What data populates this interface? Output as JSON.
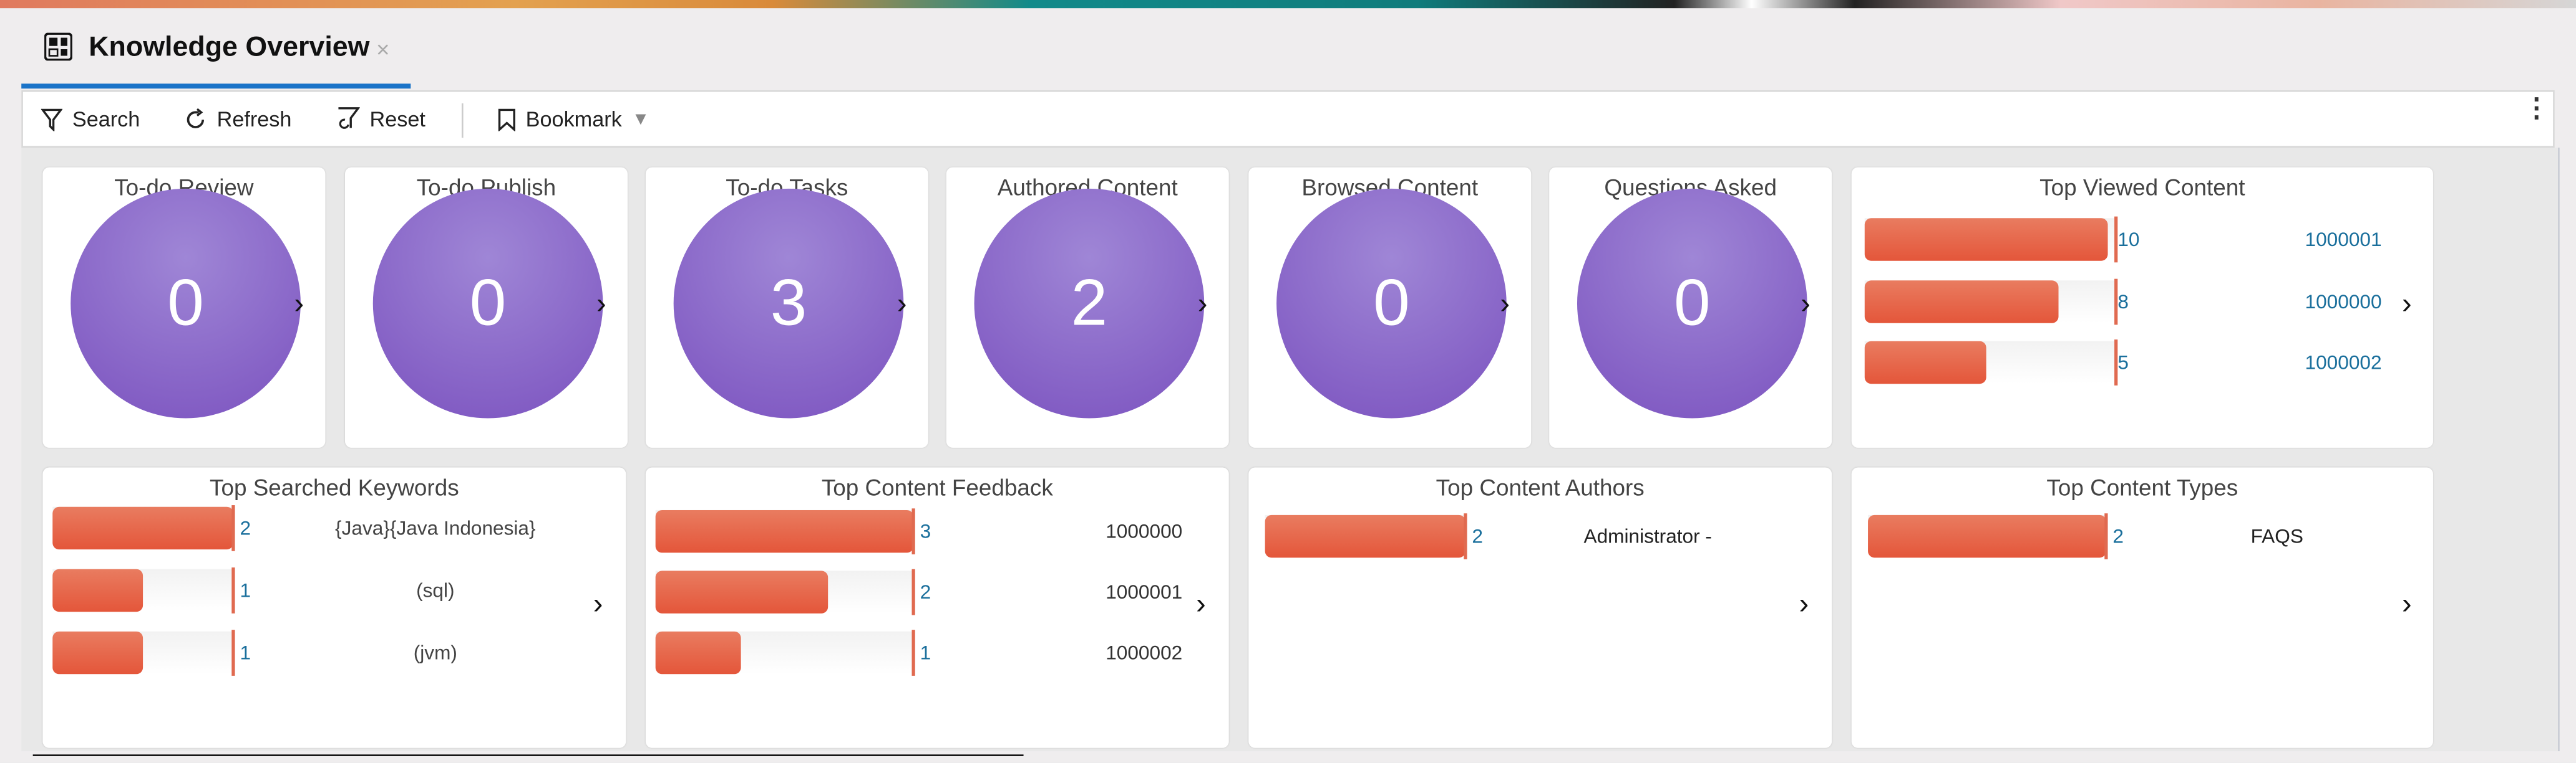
{
  "tab": {
    "title": "Knowledge Overview",
    "close": "×",
    "icon": "dashboard-icon"
  },
  "toolbar": {
    "search": "Search",
    "refresh": "Refresh",
    "reset": "Reset",
    "bookmark": "Bookmark",
    "more": "⋮"
  },
  "colors": {
    "accent": "#1a73c8",
    "circle": "#8a66c8",
    "bar": "#e4563a",
    "value_text": "#1a6f9c"
  },
  "counters": [
    {
      "title": "To-do Review",
      "value": "0"
    },
    {
      "title": "To-do Publish",
      "value": "0"
    },
    {
      "title": "To-do Tasks",
      "value": "3"
    },
    {
      "title": "Authored Content",
      "value": "2"
    },
    {
      "title": "Browsed Content",
      "value": "0"
    },
    {
      "title": "Questions Asked",
      "value": "0"
    }
  ],
  "charts": [
    {
      "id": "top-viewed",
      "title": "Top Viewed Content",
      "label_color": "#1a6f9c",
      "items": [
        {
          "value": 10,
          "label": "1000001"
        },
        {
          "value": 8,
          "label": "1000000"
        },
        {
          "value": 5,
          "label": "1000002"
        }
      ]
    },
    {
      "id": "top-searched",
      "title": "Top Searched Keywords",
      "label_color": "#444444",
      "items": [
        {
          "value": 2,
          "label": "{Java}{Java Indonesia}"
        },
        {
          "value": 1,
          "label": "(sql)"
        },
        {
          "value": 1,
          "label": "(jvm)"
        }
      ]
    },
    {
      "id": "top-feedback",
      "title": "Top Content Feedback",
      "label_color": "#333333",
      "items": [
        {
          "value": 3,
          "label": "1000000"
        },
        {
          "value": 2,
          "label": "1000001"
        },
        {
          "value": 1,
          "label": "1000002"
        }
      ]
    },
    {
      "id": "top-authors",
      "title": "Top Content Authors",
      "label_color": "#222222",
      "items": [
        {
          "value": 2,
          "label": "Administrator -"
        }
      ]
    },
    {
      "id": "top-types",
      "title": "Top Content Types",
      "label_color": "#222222",
      "items": [
        {
          "value": 2,
          "label": "FAQS"
        }
      ]
    }
  ],
  "chevron": "›"
}
